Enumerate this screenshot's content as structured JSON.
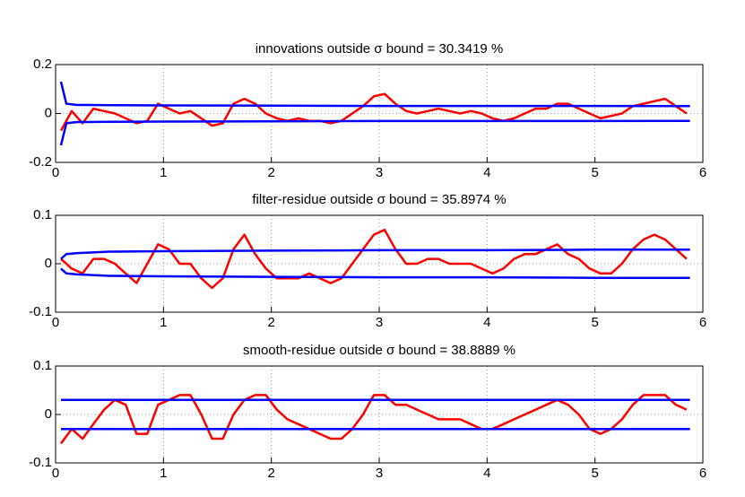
{
  "chart_data": [
    {
      "type": "line",
      "title": "innovations outside σ bound = 30.3419 %",
      "xlim": [
        0,
        6
      ],
      "xticks": [
        0,
        1,
        2,
        3,
        4,
        5,
        6
      ],
      "ylim": [
        -0.2,
        0.2
      ],
      "yticks": [
        -0.2,
        0,
        0.2
      ],
      "grid": true,
      "series": [
        {
          "color": "#ff0000",
          "x": [
            0.05,
            0.15,
            0.25,
            0.35,
            0.45,
            0.55,
            0.65,
            0.75,
            0.85,
            0.95,
            1.05,
            1.15,
            1.25,
            1.35,
            1.45,
            1.55,
            1.65,
            1.75,
            1.85,
            1.95,
            2.05,
            2.15,
            2.25,
            2.35,
            2.45,
            2.55,
            2.65,
            2.75,
            2.85,
            2.95,
            3.05,
            3.15,
            3.25,
            3.35,
            3.45,
            3.55,
            3.65,
            3.75,
            3.85,
            3.95,
            4.05,
            4.15,
            4.25,
            4.35,
            4.45,
            4.55,
            4.65,
            4.75,
            4.85,
            4.95,
            5.05,
            5.15,
            5.25,
            5.35,
            5.45,
            5.55,
            5.65,
            5.75,
            5.85
          ],
          "values": [
            -0.07,
            0.01,
            -0.04,
            0.02,
            0.01,
            0.0,
            -0.02,
            -0.04,
            -0.03,
            0.04,
            0.02,
            0.0,
            0.01,
            -0.02,
            -0.05,
            -0.04,
            0.04,
            0.06,
            0.04,
            0.0,
            -0.02,
            -0.03,
            -0.02,
            -0.03,
            -0.03,
            -0.04,
            -0.03,
            0.0,
            0.03,
            0.07,
            0.08,
            0.04,
            0.01,
            0.0,
            0.01,
            0.02,
            0.01,
            0.0,
            0.01,
            0.0,
            -0.02,
            -0.03,
            -0.02,
            0.0,
            0.02,
            0.02,
            0.04,
            0.04,
            0.02,
            0.0,
            -0.02,
            -0.01,
            0.0,
            0.03,
            0.04,
            0.05,
            0.06,
            0.03,
            0.0
          ]
        },
        {
          "color": "#0000ff",
          "x": [
            0.05,
            0.1,
            0.2,
            0.3,
            0.5,
            1,
            2,
            3,
            4,
            5,
            5.88
          ],
          "values": [
            0.13,
            0.04,
            0.035,
            0.035,
            0.034,
            0.033,
            0.032,
            0.031,
            0.031,
            0.031,
            0.03
          ]
        },
        {
          "color": "#0000ff",
          "x": [
            0.05,
            0.1,
            0.2,
            0.3,
            0.5,
            1,
            2,
            3,
            4,
            5,
            5.88
          ],
          "values": [
            -0.13,
            -0.04,
            -0.035,
            -0.035,
            -0.034,
            -0.033,
            -0.032,
            -0.031,
            -0.031,
            -0.031,
            -0.03
          ]
        }
      ]
    },
    {
      "type": "line",
      "title": "filter-residue outside σ bound = 35.8974 %",
      "xlim": [
        0,
        6
      ],
      "xticks": [
        0,
        1,
        2,
        3,
        4,
        5,
        6
      ],
      "ylim": [
        -0.1,
        0.1
      ],
      "yticks": [
        -0.1,
        0,
        0.1
      ],
      "grid": true,
      "series": [
        {
          "color": "#ff0000",
          "x": [
            0.05,
            0.15,
            0.25,
            0.35,
            0.45,
            0.55,
            0.65,
            0.75,
            0.85,
            0.95,
            1.05,
            1.15,
            1.25,
            1.35,
            1.45,
            1.55,
            1.65,
            1.75,
            1.85,
            1.95,
            2.05,
            2.15,
            2.25,
            2.35,
            2.45,
            2.55,
            2.65,
            2.75,
            2.85,
            2.95,
            3.05,
            3.15,
            3.25,
            3.35,
            3.45,
            3.55,
            3.65,
            3.75,
            3.85,
            3.95,
            4.05,
            4.15,
            4.25,
            4.35,
            4.45,
            4.55,
            4.65,
            4.75,
            4.85,
            4.95,
            5.05,
            5.15,
            5.25,
            5.35,
            5.45,
            5.55,
            5.65,
            5.75,
            5.85
          ],
          "values": [
            0.01,
            -0.01,
            -0.02,
            0.01,
            0.01,
            0.0,
            -0.02,
            -0.04,
            0.0,
            0.04,
            0.03,
            0.0,
            0.0,
            -0.03,
            -0.05,
            -0.03,
            0.03,
            0.06,
            0.02,
            -0.01,
            -0.03,
            -0.03,
            -0.03,
            -0.02,
            -0.03,
            -0.04,
            -0.03,
            0.0,
            0.03,
            0.06,
            0.07,
            0.03,
            0.0,
            0.0,
            0.01,
            0.01,
            0.0,
            0.0,
            0.0,
            -0.01,
            -0.02,
            -0.01,
            0.01,
            0.02,
            0.02,
            0.03,
            0.04,
            0.02,
            0.01,
            -0.01,
            -0.02,
            -0.02,
            0.0,
            0.03,
            0.05,
            0.06,
            0.05,
            0.03,
            0.01
          ]
        },
        {
          "color": "#0000ff",
          "x": [
            0.05,
            0.1,
            0.2,
            0.3,
            0.5,
            1,
            2,
            3,
            4,
            5,
            5.88
          ],
          "values": [
            0.01,
            0.02,
            0.022,
            0.023,
            0.025,
            0.026,
            0.027,
            0.028,
            0.028,
            0.029,
            0.029
          ]
        },
        {
          "color": "#0000ff",
          "x": [
            0.05,
            0.1,
            0.2,
            0.3,
            0.5,
            1,
            2,
            3,
            4,
            5,
            5.88
          ],
          "values": [
            -0.01,
            -0.02,
            -0.022,
            -0.023,
            -0.025,
            -0.026,
            -0.027,
            -0.028,
            -0.028,
            -0.029,
            -0.029
          ]
        }
      ]
    },
    {
      "type": "line",
      "title": "smooth-residue outside σ bound = 38.8889 %",
      "xlim": [
        0,
        6
      ],
      "xticks": [
        0,
        1,
        2,
        3,
        4,
        5,
        6
      ],
      "ylim": [
        -0.1,
        0.1
      ],
      "yticks": [
        -0.1,
        0,
        0.1
      ],
      "grid": true,
      "series": [
        {
          "color": "#ff0000",
          "x": [
            0.05,
            0.15,
            0.25,
            0.35,
            0.45,
            0.55,
            0.65,
            0.75,
            0.85,
            0.95,
            1.05,
            1.15,
            1.25,
            1.35,
            1.45,
            1.55,
            1.65,
            1.75,
            1.85,
            1.95,
            2.05,
            2.15,
            2.25,
            2.35,
            2.45,
            2.55,
            2.65,
            2.75,
            2.85,
            2.95,
            3.05,
            3.15,
            3.25,
            3.35,
            3.45,
            3.55,
            3.65,
            3.75,
            3.85,
            3.95,
            4.05,
            4.15,
            4.25,
            4.35,
            4.45,
            4.55,
            4.65,
            4.75,
            4.85,
            4.95,
            5.05,
            5.15,
            5.25,
            5.35,
            5.45,
            5.55,
            5.65,
            5.75,
            5.85
          ],
          "values": [
            -0.06,
            -0.03,
            -0.05,
            -0.02,
            0.01,
            0.03,
            0.02,
            -0.04,
            -0.04,
            0.02,
            0.03,
            0.04,
            0.04,
            0.0,
            -0.05,
            -0.05,
            0.0,
            0.03,
            0.04,
            0.04,
            0.01,
            -0.01,
            -0.02,
            -0.03,
            -0.04,
            -0.05,
            -0.05,
            -0.03,
            0.0,
            0.04,
            0.04,
            0.02,
            0.02,
            0.01,
            0.0,
            -0.01,
            -0.01,
            -0.01,
            -0.02,
            -0.03,
            -0.03,
            -0.02,
            -0.01,
            0.0,
            0.01,
            0.02,
            0.03,
            0.02,
            0.0,
            -0.03,
            -0.04,
            -0.03,
            -0.01,
            0.02,
            0.04,
            0.04,
            0.04,
            0.02,
            0.01
          ]
        },
        {
          "color": "#0000ff",
          "x": [
            0.05,
            5.88
          ],
          "values": [
            0.03,
            0.03
          ]
        },
        {
          "color": "#0000ff",
          "x": [
            0.05,
            5.88
          ],
          "values": [
            -0.03,
            -0.03
          ]
        }
      ]
    }
  ]
}
